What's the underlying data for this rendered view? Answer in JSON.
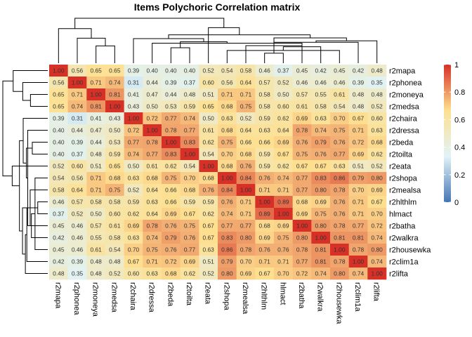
{
  "chart_data": {
    "type": "heatmap",
    "title": "Items Polychoric Correlation matrix",
    "xlabel": "",
    "ylabel": "",
    "labels": [
      "r2mapa",
      "r2phonea",
      "r2moneya",
      "r2medsa",
      "r2chaira",
      "r2dressa",
      "r2beda",
      "r2toilta",
      "r2eata",
      "r2shopa",
      "r2mealsa",
      "r2hlthlm",
      "hlmact",
      "r2batha",
      "r2walkra",
      "r2housewka",
      "r2clim1a",
      "r2lifta"
    ],
    "values": [
      [
        1.0,
        0.56,
        0.65,
        0.65,
        0.39,
        0.4,
        0.4,
        0.4,
        0.52,
        0.54,
        0.58,
        0.46,
        0.37,
        0.45,
        0.42,
        0.45,
        0.42,
        0.48
      ],
      [
        0.56,
        1.0,
        0.71,
        0.74,
        0.31,
        0.44,
        0.39,
        0.37,
        0.6,
        0.56,
        0.64,
        0.57,
        0.52,
        0.46,
        0.46,
        0.46,
        0.39,
        0.35
      ],
      [
        0.65,
        0.71,
        1.0,
        0.81,
        0.41,
        0.47,
        0.44,
        0.48,
        0.51,
        0.71,
        0.71,
        0.58,
        0.5,
        0.57,
        0.55,
        0.61,
        0.48,
        0.48
      ],
      [
        0.65,
        0.74,
        0.81,
        1.0,
        0.43,
        0.5,
        0.53,
        0.59,
        0.65,
        0.68,
        0.75,
        0.58,
        0.6,
        0.61,
        0.58,
        0.54,
        0.48,
        0.52
      ],
      [
        0.39,
        0.31,
        0.41,
        0.43,
        1.0,
        0.72,
        0.77,
        0.74,
        0.5,
        0.63,
        0.52,
        0.59,
        0.62,
        0.69,
        0.63,
        0.7,
        0.67,
        0.6
      ],
      [
        0.4,
        0.44,
        0.47,
        0.5,
        0.72,
        1.0,
        0.78,
        0.77,
        0.61,
        0.68,
        0.64,
        0.63,
        0.64,
        0.78,
        0.74,
        0.75,
        0.71,
        0.63
      ],
      [
        0.4,
        0.39,
        0.44,
        0.53,
        0.77,
        0.78,
        1.0,
        0.83,
        0.62,
        0.75,
        0.66,
        0.66,
        0.69,
        0.76,
        0.79,
        0.76,
        0.72,
        0.68
      ],
      [
        0.4,
        0.37,
        0.48,
        0.59,
        0.74,
        0.77,
        0.83,
        1.0,
        0.54,
        0.7,
        0.68,
        0.59,
        0.67,
        0.75,
        0.76,
        0.77,
        0.69,
        0.62
      ],
      [
        0.52,
        0.6,
        0.51,
        0.65,
        0.5,
        0.61,
        0.62,
        0.54,
        1.0,
        0.68,
        0.76,
        0.59,
        0.62,
        0.67,
        0.67,
        0.63,
        0.51,
        0.52
      ],
      [
        0.54,
        0.56,
        0.71,
        0.68,
        0.63,
        0.68,
        0.75,
        0.7,
        0.68,
        1.0,
        0.84,
        0.76,
        0.74,
        0.77,
        0.83,
        0.86,
        0.79,
        0.8
      ],
      [
        0.58,
        0.64,
        0.71,
        0.75,
        0.52,
        0.64,
        0.66,
        0.68,
        0.76,
        0.84,
        1.0,
        0.71,
        0.71,
        0.77,
        0.8,
        0.78,
        0.7,
        0.69
      ],
      [
        0.46,
        0.57,
        0.58,
        0.58,
        0.59,
        0.63,
        0.66,
        0.59,
        0.59,
        0.76,
        0.71,
        1.0,
        0.89,
        0.68,
        0.69,
        0.76,
        0.71,
        0.67
      ],
      [
        0.37,
        0.52,
        0.5,
        0.6,
        0.62,
        0.64,
        0.69,
        0.67,
        0.62,
        0.74,
        0.71,
        0.89,
        1.0,
        0.69,
        0.75,
        0.76,
        0.71,
        0.7
      ],
      [
        0.45,
        0.46,
        0.57,
        0.61,
        0.69,
        0.78,
        0.76,
        0.75,
        0.67,
        0.77,
        0.77,
        0.68,
        0.69,
        1.0,
        0.8,
        0.78,
        0.77,
        0.72
      ],
      [
        0.42,
        0.46,
        0.55,
        0.58,
        0.63,
        0.74,
        0.79,
        0.76,
        0.67,
        0.83,
        0.8,
        0.69,
        0.75,
        0.8,
        1.0,
        0.81,
        0.81,
        0.74
      ],
      [
        0.45,
        0.46,
        0.61,
        0.54,
        0.7,
        0.75,
        0.76,
        0.77,
        0.63,
        0.86,
        0.78,
        0.76,
        0.76,
        0.78,
        0.81,
        1.0,
        0.78,
        0.8
      ],
      [
        0.42,
        0.39,
        0.48,
        0.48,
        0.67,
        0.71,
        0.72,
        0.69,
        0.51,
        0.79,
        0.7,
        0.71,
        0.71,
        0.77,
        0.81,
        0.78,
        1.0,
        0.74
      ],
      [
        0.48,
        0.35,
        0.48,
        0.52,
        0.6,
        0.63,
        0.68,
        0.62,
        0.52,
        0.8,
        0.69,
        0.67,
        0.7,
        0.72,
        0.74,
        0.8,
        0.74,
        1.0
      ]
    ],
    "value_range": [
      0,
      1
    ],
    "colorscale": [
      "#4575b4",
      "#e0f3f8",
      "#fee090",
      "#d73027"
    ],
    "legend": {
      "placement": "right",
      "ticks": [
        "0",
        "0.2",
        "0.4",
        "0.6",
        "0.8",
        "1"
      ]
    },
    "dendrogram": "both"
  }
}
